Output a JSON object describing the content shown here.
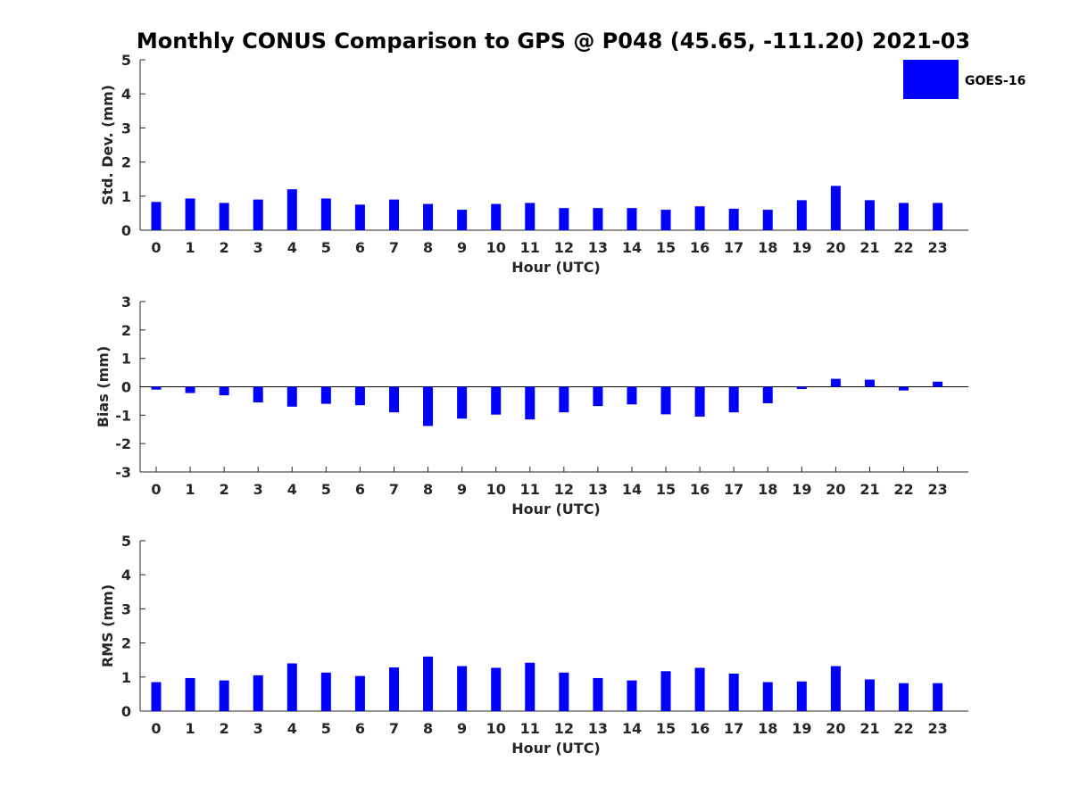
{
  "chart_data": [
    {
      "type": "bar",
      "title": "Monthly CONUS Comparison to GPS @ P048 (45.65, -111.20) 2021-03",
      "xlabel": "Hour (UTC)",
      "ylabel": "Std. Dev. (mm)",
      "ylim": [
        0,
        5
      ],
      "yticks": [
        "0",
        "1",
        "2",
        "3",
        "4",
        "5"
      ],
      "categories": [
        "0",
        "1",
        "2",
        "3",
        "4",
        "5",
        "6",
        "7",
        "8",
        "9",
        "10",
        "11",
        "12",
        "13",
        "14",
        "15",
        "16",
        "17",
        "18",
        "19",
        "20",
        "21",
        "22",
        "23"
      ],
      "series": [
        {
          "name": "GOES-16",
          "values": [
            0.83,
            0.93,
            0.8,
            0.9,
            1.2,
            0.93,
            0.75,
            0.9,
            0.77,
            0.6,
            0.77,
            0.8,
            0.65,
            0.65,
            0.65,
            0.6,
            0.7,
            0.63,
            0.6,
            0.88,
            1.3,
            0.88,
            0.8,
            0.8
          ]
        }
      ],
      "grid": false,
      "legend": "top-right"
    },
    {
      "type": "bar",
      "title": "",
      "xlabel": "Hour (UTC)",
      "ylabel": "Bias (mm)",
      "ylim": [
        -3,
        3
      ],
      "yticks": [
        "-3",
        "-2",
        "-1",
        "0",
        "1",
        "2",
        "3"
      ],
      "categories": [
        "0",
        "1",
        "2",
        "3",
        "4",
        "5",
        "6",
        "7",
        "8",
        "9",
        "10",
        "11",
        "12",
        "13",
        "14",
        "15",
        "16",
        "17",
        "18",
        "19",
        "20",
        "21",
        "22",
        "23"
      ],
      "series": [
        {
          "name": "GOES-16",
          "values": [
            -0.1,
            -0.22,
            -0.3,
            -0.55,
            -0.7,
            -0.6,
            -0.65,
            -0.9,
            -1.38,
            -1.12,
            -0.98,
            -1.15,
            -0.9,
            -0.68,
            -0.62,
            -0.97,
            -1.05,
            -0.9,
            -0.58,
            -0.08,
            0.28,
            0.25,
            -0.13,
            0.18
          ]
        }
      ],
      "grid": false
    },
    {
      "type": "bar",
      "title": "",
      "xlabel": "Hour (UTC)",
      "ylabel": "RMS (mm)",
      "ylim": [
        0,
        5
      ],
      "yticks": [
        "0",
        "1",
        "2",
        "3",
        "4",
        "5"
      ],
      "categories": [
        "0",
        "1",
        "2",
        "3",
        "4",
        "5",
        "6",
        "7",
        "8",
        "9",
        "10",
        "11",
        "12",
        "13",
        "14",
        "15",
        "16",
        "17",
        "18",
        "19",
        "20",
        "21",
        "22",
        "23"
      ],
      "series": [
        {
          "name": "GOES-16",
          "values": [
            0.85,
            0.97,
            0.9,
            1.05,
            1.4,
            1.13,
            1.03,
            1.28,
            1.6,
            1.32,
            1.27,
            1.42,
            1.13,
            0.97,
            0.9,
            1.17,
            1.27,
            1.1,
            0.85,
            0.87,
            1.32,
            0.93,
            0.82,
            0.82
          ]
        }
      ],
      "grid": false
    }
  ],
  "legend": {
    "label": "GOES-16",
    "color": "#0000ff"
  },
  "colors": {
    "bar": "#0000ff",
    "axis": "#262626"
  }
}
